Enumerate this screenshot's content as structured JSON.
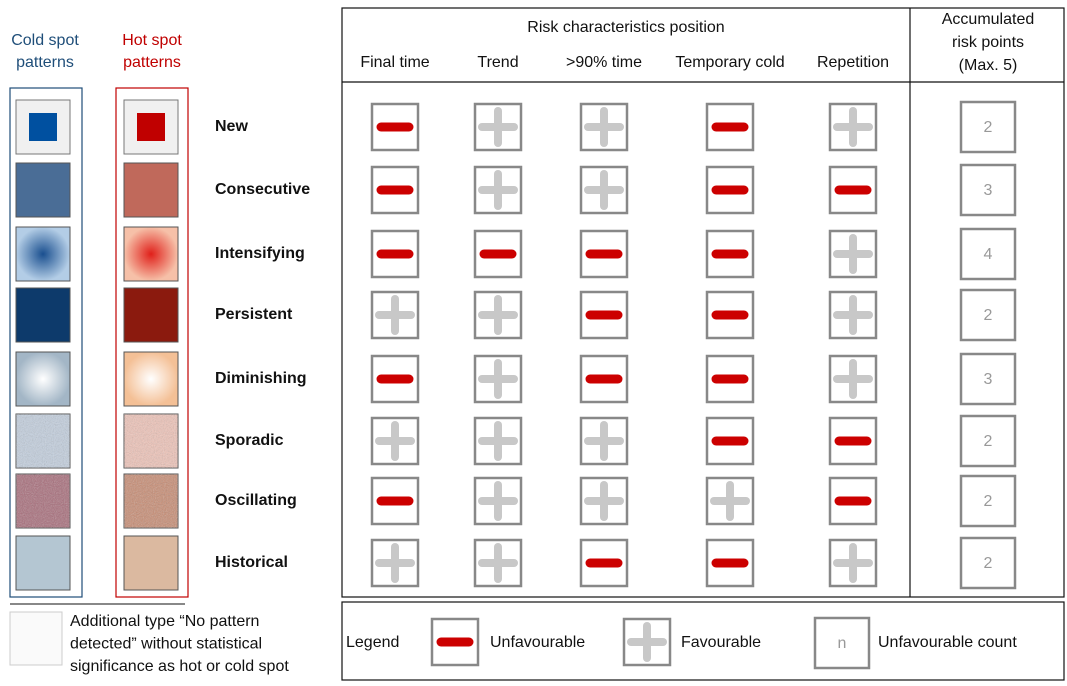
{
  "cold_header": [
    "Cold spot",
    "patterns"
  ],
  "hot_header": [
    "Hot spot",
    "patterns"
  ],
  "table": {
    "title": "Risk characteristics position",
    "columns": [
      "Final time",
      "Trend",
      ">90% time",
      "Temporary cold",
      "Repetition"
    ],
    "count_header": [
      "Accumulated",
      "risk points",
      "(Max. 5)"
    ],
    "rows": [
      {
        "name": "New",
        "unfavourable": [
          true,
          false,
          false,
          true,
          false
        ],
        "count": 2
      },
      {
        "name": "Consecutive",
        "unfavourable": [
          true,
          false,
          false,
          true,
          true
        ],
        "count": 3
      },
      {
        "name": "Intensifying",
        "unfavourable": [
          true,
          true,
          true,
          true,
          false
        ],
        "count": 4
      },
      {
        "name": "Persistent",
        "unfavourable": [
          false,
          false,
          true,
          true,
          false
        ],
        "count": 2
      },
      {
        "name": "Diminishing",
        "unfavourable": [
          true,
          false,
          true,
          true,
          false
        ],
        "count": 3
      },
      {
        "name": "Sporadic",
        "unfavourable": [
          false,
          false,
          false,
          true,
          true
        ],
        "count": 2
      },
      {
        "name": "Oscillating",
        "unfavourable": [
          true,
          false,
          false,
          false,
          true
        ],
        "count": 2
      },
      {
        "name": "Historical",
        "unfavourable": [
          false,
          false,
          true,
          true,
          false
        ],
        "count": 2
      }
    ]
  },
  "note": [
    "Additional type “No pattern",
    "detected” without statistical",
    "significance as hot or cold spot"
  ],
  "legend": {
    "title": "Legend",
    "unfavourable": "Unfavourable",
    "favourable": "Favourable",
    "count_symbol": "n",
    "count": "Unfavourable count"
  }
}
